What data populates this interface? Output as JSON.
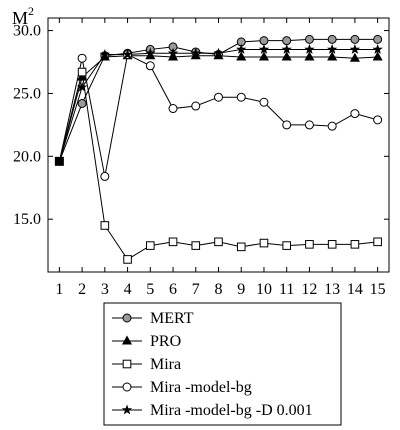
{
  "chart_data": {
    "type": "line",
    "title": "",
    "ylabel": "M",
    "ylabel_superscript": "2",
    "xlabel": "",
    "x": [
      1,
      2,
      3,
      4,
      5,
      6,
      7,
      8,
      9,
      10,
      11,
      12,
      13,
      14,
      15
    ],
    "xlim": [
      0.5,
      15.5
    ],
    "ylim": [
      10.8,
      31.0
    ],
    "y_ticks": [
      15.0,
      20.0,
      25.0,
      30.0
    ],
    "y_tick_labels": [
      "15.0",
      "20.0",
      "25.0",
      "30.0"
    ],
    "x_tick_labels": [
      "1",
      "2",
      "3",
      "4",
      "5",
      "6",
      "7",
      "8",
      "9",
      "10",
      "11",
      "12",
      "13",
      "14",
      "15"
    ],
    "grid": false,
    "legend_position": "bottom-center",
    "series": [
      {
        "name": "MERT",
        "marker": "circle-filled",
        "values": [
          19.6,
          24.2,
          28.0,
          28.2,
          28.5,
          28.7,
          28.3,
          28.1,
          29.1,
          29.2,
          29.2,
          29.3,
          29.3,
          29.3,
          29.3
        ]
      },
      {
        "name": "PRO",
        "marker": "triangle",
        "values": [
          19.6,
          26.3,
          27.9,
          28.0,
          28.0,
          27.9,
          28.0,
          28.0,
          27.9,
          27.9,
          27.9,
          27.9,
          27.9,
          27.8,
          27.9
        ]
      },
      {
        "name": "Mira",
        "marker": "square-open",
        "values": [
          19.6,
          26.7,
          14.5,
          11.8,
          12.9,
          13.2,
          12.9,
          13.2,
          12.8,
          13.1,
          12.9,
          13.0,
          13.0,
          13.0,
          13.2
        ]
      },
      {
        "name": "Mira -model-bg",
        "marker": "circle-open",
        "values": [
          19.6,
          27.8,
          18.4,
          28.1,
          27.2,
          23.8,
          24.0,
          24.7,
          24.7,
          24.3,
          22.5,
          22.5,
          22.4,
          23.4,
          22.9
        ]
      },
      {
        "name": "Mira -model-bg -D 0.001",
        "marker": "star",
        "values": [
          19.6,
          25.5,
          28.1,
          28.1,
          28.2,
          28.2,
          28.2,
          28.2,
          28.5,
          28.5,
          28.5,
          28.5,
          28.5,
          28.5,
          28.5
        ]
      }
    ]
  },
  "colors": {
    "line": "#000000",
    "marker_fill_filled": "#9a9a9a",
    "marker_fill_open": "#ffffff",
    "background": "#ffffff"
  }
}
